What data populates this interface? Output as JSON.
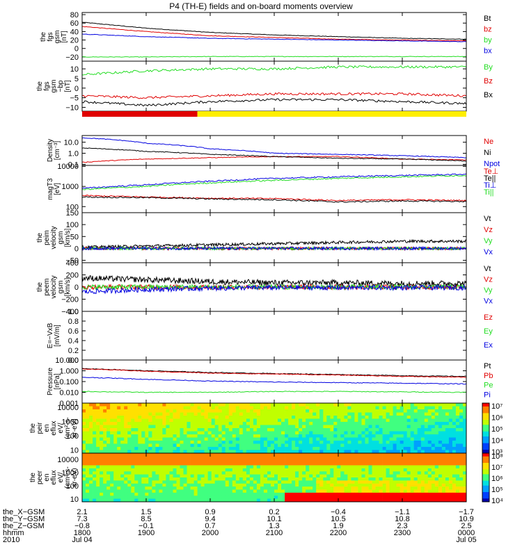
{
  "title": "P4 (TH-E) fields and on-board moments overview",
  "colors": {
    "black": "#000000",
    "red": "#e00000",
    "blue": "#0000e0",
    "green": "#22dd22",
    "yellow": "#ffee00"
  },
  "chart_data": [
    {
      "type": "line",
      "panel": "fgs_gsm",
      "ylabel": [
        "the",
        "fgs",
        "gsm",
        "[nT]"
      ],
      "yticks": [
        "80",
        "60",
        "40",
        "20",
        "0",
        "−20"
      ],
      "ylim": [
        -30,
        85
      ],
      "series": [
        {
          "name": "Bt",
          "color": "black",
          "x": [
            18,
            19,
            20,
            21,
            22,
            23,
            24
          ],
          "values": [
            62,
            48,
            38,
            32,
            28,
            24,
            22
          ]
        },
        {
          "name": "bz",
          "color": "red",
          "x": [
            18,
            19,
            20,
            21,
            22,
            23,
            24
          ],
          "values": [
            52,
            40,
            30,
            26,
            22,
            20,
            18
          ]
        },
        {
          "name": "by",
          "color": "green",
          "x": [
            18,
            19,
            20,
            21,
            22,
            23,
            24
          ],
          "values": [
            -20,
            -20,
            -19,
            -19,
            -19,
            -19,
            -19
          ]
        },
        {
          "name": "bx",
          "color": "blue",
          "x": [
            18,
            19,
            20,
            21,
            22,
            23,
            24
          ],
          "values": [
            34,
            28,
            24,
            22,
            20,
            18,
            16
          ]
        }
      ]
    },
    {
      "type": "line",
      "panel": "fgs_gsm_dtrend",
      "ylabel": [
        "the",
        "fgs",
        "gsm",
        "−bp",
        "[nT]"
      ],
      "yticks": [
        "10",
        "5",
        "0",
        "−5",
        "−10"
      ],
      "ylim": [
        -12,
        14
      ],
      "series": [
        {
          "name": "By",
          "color": "green",
          "x": [
            18,
            19,
            20,
            21,
            22,
            23,
            24
          ],
          "values": [
            7,
            9,
            10,
            10,
            11,
            11,
            11
          ]
        },
        {
          "name": "Bz",
          "color": "red",
          "x": [
            18,
            19,
            20,
            21,
            22,
            23,
            24
          ],
          "values": [
            -4,
            -5,
            -4,
            -3,
            -3,
            -3,
            -4
          ]
        },
        {
          "name": "Bx",
          "color": "black",
          "x": [
            18,
            19,
            20,
            21,
            22,
            23,
            24
          ],
          "values": [
            -7,
            -9,
            -7,
            -6,
            -6,
            -7,
            -8
          ]
        }
      ]
    },
    {
      "type": "line",
      "panel": "density",
      "ylabel": [
        "Density",
        "[cm⁻³]"
      ],
      "scale": "log",
      "yticks": [
        "10.0",
        "1.0",
        "0.1"
      ],
      "ylim": [
        0.08,
        40
      ],
      "series": [
        {
          "name": "Ne",
          "color": "red",
          "x": [
            18,
            19,
            20,
            21,
            22,
            23,
            24
          ],
          "values": [
            0.15,
            0.3,
            0.4,
            0.5,
            0.5,
            0.3,
            0.25
          ]
        },
        {
          "name": "Ni",
          "color": "black",
          "x": [
            18,
            19,
            20,
            21,
            22,
            23,
            24
          ],
          "values": [
            3.0,
            1.5,
            0.8,
            0.5,
            0.35,
            0.3,
            0.2
          ]
        },
        {
          "name": "Npot",
          "color": "blue",
          "x": [
            18,
            19,
            20,
            21,
            22,
            23,
            24
          ],
          "values": [
            25,
            8,
            2.5,
            1.0,
            0.8,
            0.6,
            0.4
          ]
        }
      ]
    },
    {
      "type": "line",
      "panel": "temperature",
      "ylabel": [
        "magT3",
        "[eV]"
      ],
      "scale": "log",
      "yticks": [
        "10000",
        "1000",
        "100"
      ],
      "ylim": [
        50,
        11000
      ],
      "series": [
        {
          "name": "Te⊥",
          "color": "red",
          "x": [
            18,
            19,
            20,
            21,
            22,
            23,
            24
          ],
          "values": [
            350,
            300,
            260,
            250,
            200,
            220,
            200
          ]
        },
        {
          "name": "Te||",
          "color": "black",
          "x": [
            18,
            19,
            20,
            21,
            22,
            23,
            24
          ],
          "values": [
            300,
            280,
            240,
            220,
            170,
            190,
            180
          ]
        },
        {
          "name": "Ti⊥",
          "color": "blue",
          "x": [
            18,
            19,
            20,
            21,
            22,
            23,
            24
          ],
          "values": [
            800,
            1200,
            1800,
            2500,
            3000,
            3500,
            4000
          ]
        },
        {
          "name": "Ti||",
          "color": "green",
          "x": [
            18,
            19,
            20,
            21,
            22,
            23,
            24
          ],
          "values": [
            700,
            1000,
            1500,
            2000,
            2500,
            3000,
            3500
          ]
        }
      ]
    },
    {
      "type": "line",
      "panel": "peim_velocity",
      "ylabel": [
        "the",
        "peim",
        "velocity",
        "gsm",
        "[km/s]"
      ],
      "yticks": [
        "150",
        "100",
        "50",
        "0",
        "−50"
      ],
      "ylim": [
        -60,
        150
      ],
      "series": [
        {
          "name": "Vt",
          "color": "black",
          "x": [
            18,
            19,
            20,
            21,
            22,
            23,
            24
          ],
          "values": [
            5,
            10,
            15,
            20,
            25,
            30,
            30
          ]
        },
        {
          "name": "Vz",
          "color": "red",
          "x": [
            18,
            19,
            20,
            21,
            22,
            23,
            24
          ],
          "values": [
            0,
            0,
            0,
            0,
            0,
            0,
            0
          ]
        },
        {
          "name": "Vy",
          "color": "green",
          "x": [
            18,
            19,
            20,
            21,
            22,
            23,
            24
          ],
          "values": [
            0,
            0,
            0,
            0,
            0,
            0,
            0
          ]
        },
        {
          "name": "Vx",
          "color": "blue",
          "x": [
            18,
            19,
            20,
            21,
            22,
            23,
            24
          ],
          "values": [
            0,
            0,
            0,
            0,
            0,
            0,
            0
          ]
        }
      ]
    },
    {
      "type": "line",
      "panel": "peem_velocity",
      "ylabel": [
        "the",
        "peem",
        "velocity",
        "gsm",
        "[km/s]"
      ],
      "yticks": [
        "400",
        "200",
        "0",
        "−200",
        "−400"
      ],
      "ylim": [
        -400,
        400
      ],
      "series": [
        {
          "name": "Vt",
          "color": "black",
          "x": [
            18,
            19,
            20,
            21,
            22,
            23,
            24
          ],
          "values": [
            150,
            120,
            90,
            70,
            70,
            60,
            60
          ]
        },
        {
          "name": "Vz",
          "color": "red",
          "x": [
            18,
            19,
            20,
            21,
            22,
            23,
            24
          ],
          "values": [
            0,
            0,
            0,
            0,
            0,
            0,
            0
          ]
        },
        {
          "name": "Vy",
          "color": "green",
          "x": [
            18,
            19,
            20,
            21,
            22,
            23,
            24
          ],
          "values": [
            0,
            0,
            0,
            0,
            0,
            0,
            0
          ]
        },
        {
          "name": "Vx",
          "color": "blue",
          "x": [
            18,
            19,
            20,
            21,
            22,
            23,
            24
          ],
          "values": [
            -80,
            -40,
            -20,
            -10,
            -10,
            -10,
            -10
          ]
        }
      ]
    },
    {
      "type": "line",
      "panel": "efield",
      "ylabel": [
        "E=−VxB",
        "[mV/m]"
      ],
      "yticks": [
        "1.0",
        "0.8",
        "0.6",
        "0.4",
        "0.2",
        "0.0"
      ],
      "ylim": [
        0,
        1
      ],
      "series": [
        {
          "name": "Ez",
          "color": "red",
          "x": [],
          "values": []
        },
        {
          "name": "Ey",
          "color": "green",
          "x": [],
          "values": []
        },
        {
          "name": "Ex",
          "color": "blue",
          "x": [],
          "values": []
        }
      ]
    },
    {
      "type": "line",
      "panel": "pressure",
      "ylabel": [
        "Pressure",
        "[nPa]"
      ],
      "scale": "log",
      "yticks": [
        "10.000",
        "1.000",
        "0.100",
        "0.010",
        "0.001"
      ],
      "ylim": [
        0.001,
        10
      ],
      "series": [
        {
          "name": "Pt",
          "color": "black",
          "x": [
            18,
            19,
            20,
            21,
            22,
            23,
            24
          ],
          "values": [
            1.6,
            1.0,
            0.7,
            0.55,
            0.45,
            0.35,
            0.3
          ]
        },
        {
          "name": "Pb",
          "color": "red",
          "x": [
            18,
            19,
            20,
            21,
            22,
            23,
            24
          ],
          "values": [
            1.5,
            0.9,
            0.6,
            0.5,
            0.4,
            0.3,
            0.25
          ]
        },
        {
          "name": "Pe",
          "color": "green",
          "x": [
            18,
            19,
            20,
            21,
            22,
            23,
            24
          ],
          "values": [
            0.012,
            0.01,
            0.01,
            0.012,
            0.012,
            0.011,
            0.01
          ]
        },
        {
          "name": "Pi",
          "color": "blue",
          "x": [
            18,
            19,
            20,
            21,
            22,
            23,
            24
          ],
          "values": [
            0.25,
            0.16,
            0.11,
            0.09,
            0.08,
            0.07,
            0.06
          ]
        }
      ]
    },
    {
      "type": "heatmap",
      "panel": "peir_en_eflux",
      "ylabel": [
        "the",
        "peir",
        "en",
        "eflux",
        "eV/",
        "(cm²-s-",
        "sr-eV)"
      ],
      "scale": "log",
      "yticks": [
        "10000",
        "1000",
        "100",
        "10"
      ],
      "ylim": [
        6,
        20000
      ],
      "colorbar": {
        "labels": [
          "10⁷",
          "10⁶",
          "10⁵",
          "10⁴",
          "10³"
        ]
      }
    },
    {
      "type": "heatmap",
      "panel": "peer_en_eflux",
      "ylabel": [
        "the",
        "peer",
        "en",
        "eflux",
        "eV/",
        "(cm²-s-",
        "sr-eV)"
      ],
      "scale": "log",
      "yticks": [
        "10000",
        "1000",
        "100",
        "10"
      ],
      "ylim": [
        6,
        30000
      ],
      "colorbar": {
        "labels": [
          "10⁸",
          "10⁷",
          "10⁶",
          "10⁵",
          "10⁴"
        ]
      }
    }
  ],
  "mode_bar": {
    "segments": [
      {
        "color": "red",
        "from": 18,
        "to": 19.8
      },
      {
        "color": "yellow",
        "from": 19.8,
        "to": 24
      }
    ]
  },
  "footer": {
    "row_labels": [
      "the_X−GSM",
      "the_Y−GSM",
      "the_Z−GSM",
      "hhmm",
      "2010"
    ],
    "columns": [
      {
        "x": 18,
        "vals": [
          "2.1",
          "7.3",
          "−0.8",
          "1800",
          "Jul 04"
        ]
      },
      {
        "x": 19,
        "vals": [
          "1.5",
          "8.5",
          "−0.1",
          "1900",
          ""
        ]
      },
      {
        "x": 20,
        "vals": [
          "0.9",
          "9.4",
          "0.7",
          "2000",
          ""
        ]
      },
      {
        "x": 21,
        "vals": [
          "0.2",
          "10.1",
          "1.3",
          "2100",
          ""
        ]
      },
      {
        "x": 22,
        "vals": [
          "−0.4",
          "10.5",
          "1.9",
          "2200",
          ""
        ]
      },
      {
        "x": 23,
        "vals": [
          "−1.1",
          "10.8",
          "2.3",
          "2300",
          ""
        ]
      },
      {
        "x": 24,
        "vals": [
          "−1.7",
          "10.9",
          "2.5",
          "0000",
          "Jul 05"
        ]
      }
    ]
  }
}
